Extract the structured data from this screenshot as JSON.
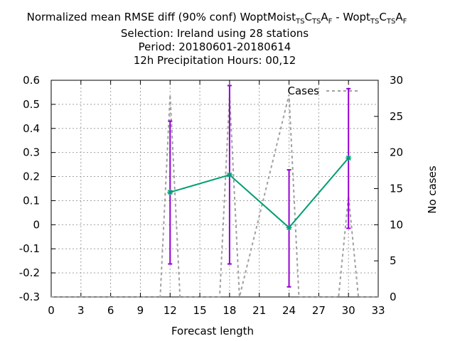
{
  "chart_data": {
    "type": "line",
    "title_lines": [
      "Normalized mean RMSE diff (90% conf) WoptMoist",
      "Selection: Ireland using    28 stations",
      "Period: 20180601-20180614",
      "12h Precipitation   Hours:  00,12"
    ],
    "title_parts": {
      "prefix": "Normalized mean RMSE diff (90% conf) WoptMoist",
      "sub1": "TS",
      "mid1": "C",
      "sub2": "TS",
      "mid2": "A",
      "sub3": "F",
      "sep": " - Wopt",
      "sub4": "TS",
      "mid3": "C",
      "sub5": "TS",
      "mid4": "A",
      "sub6": "F"
    },
    "xlabel": "Forecast length",
    "ylabel_left": "",
    "ylabel_right": "No cases",
    "xlim": [
      0,
      33
    ],
    "ylim": [
      -0.3,
      0.6
    ],
    "y2lim": [
      0,
      30
    ],
    "xticks": [
      0,
      3,
      6,
      9,
      12,
      15,
      18,
      21,
      24,
      27,
      30,
      33
    ],
    "yticks": [
      -0.3,
      -0.2,
      -0.1,
      0,
      0.1,
      0.2,
      0.3,
      0.4,
      0.5,
      0.6
    ],
    "ytick_labels": [
      "-0.3",
      "-0.2",
      "-0.1",
      "0",
      "0.1",
      "0.2",
      "0.3",
      "0.4",
      "0.5",
      "0.6"
    ],
    "y2ticks": [
      0,
      5,
      10,
      15,
      20,
      25,
      30
    ],
    "grid": true,
    "legend": {
      "position": "top-right",
      "entries": [
        "Cases"
      ]
    },
    "series": [
      {
        "kind": "main",
        "color": "#009e73",
        "x": [
          12,
          18,
          24,
          30
        ],
        "y": [
          0.135,
          0.207,
          -0.012,
          0.277
        ],
        "err_low": [
          -0.163,
          -0.163,
          -0.258,
          -0.015
        ],
        "err_high": [
          0.43,
          0.578,
          0.228,
          0.565
        ],
        "err_color": "#9400d3"
      },
      {
        "kind": "cases",
        "name": "Cases",
        "axis": "y2",
        "color": "#a0a0a0",
        "x": [
          0,
          11,
          12,
          13,
          17,
          18,
          19,
          24,
          25,
          29,
          30,
          31,
          33
        ],
        "y": [
          0,
          0,
          28,
          0,
          0,
          28,
          0,
          28,
          0,
          0,
          14,
          0,
          0
        ]
      }
    ]
  }
}
